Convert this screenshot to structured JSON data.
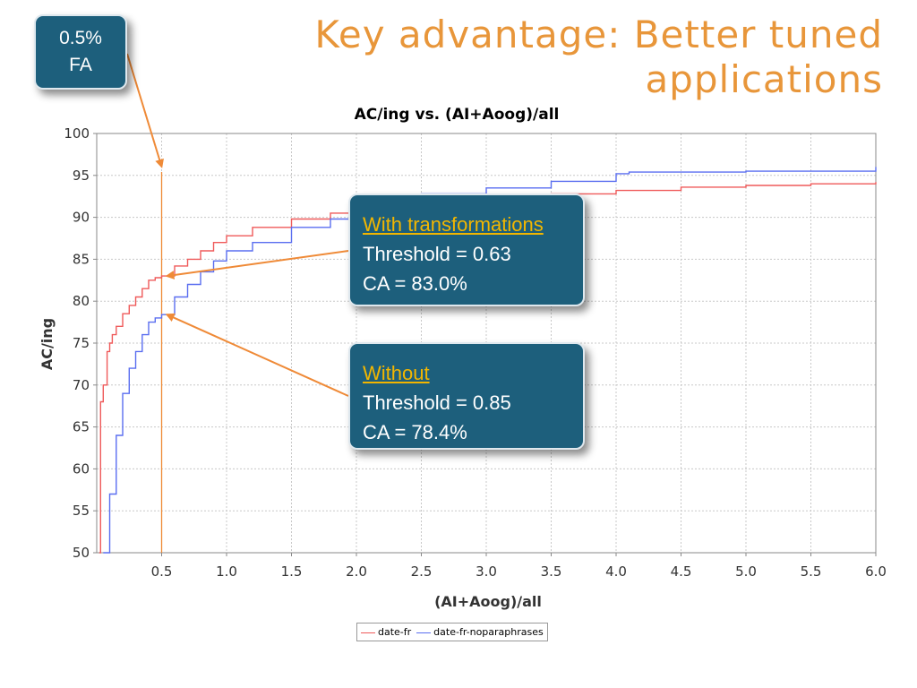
{
  "slide": {
    "title_line1": "Key advantage: Better tuned",
    "title_line2": "applications",
    "title_color": "#e8963a"
  },
  "callouts": {
    "fa": {
      "line1": "0.5%",
      "line2": "FA"
    },
    "with": {
      "header": "With transformations",
      "threshold": "Threshold = 0.63",
      "ca": "CA = 83.0%"
    },
    "without": {
      "header": "Without",
      "threshold": "Threshold = 0.85",
      "ca": "CA = 78.4%"
    },
    "box_color": "#1d5f7c",
    "header_color": "#f2b600",
    "arrow_color": "#ef8a37"
  },
  "chart_data": {
    "type": "line",
    "title": "AC/ing vs. (AI+Aoog)/all",
    "xlabel": "(AI+Aoog)/all",
    "ylabel": "AC/ing",
    "xlim": [
      0,
      6.0
    ],
    "ylim": [
      50,
      100
    ],
    "xticks": [
      "0.5",
      "1.0",
      "1.5",
      "2.0",
      "2.5",
      "3.0",
      "3.5",
      "4.0",
      "4.5",
      "5.0",
      "5.5",
      "6.0"
    ],
    "yticks": [
      "50",
      "55",
      "60",
      "65",
      "70",
      "75",
      "80",
      "85",
      "90",
      "95",
      "100"
    ],
    "grid": true,
    "marker_line_x": 0.5,
    "series": [
      {
        "name": "date-fr",
        "color": "#ef5a5a",
        "x": [
          0.02,
          0.03,
          0.05,
          0.08,
          0.1,
          0.12,
          0.15,
          0.2,
          0.25,
          0.3,
          0.35,
          0.4,
          0.45,
          0.5,
          0.6,
          0.7,
          0.8,
          0.9,
          1.0,
          1.2,
          1.5,
          1.8,
          2.0,
          2.5,
          3.0,
          3.5,
          4.0,
          4.5,
          5.0,
          5.5,
          6.0
        ],
        "y": [
          50,
          68,
          70,
          74,
          75,
          76,
          77,
          78.5,
          79.5,
          80.5,
          81.5,
          82.5,
          82.8,
          83.0,
          84.2,
          85.0,
          86.0,
          87.0,
          87.8,
          88.8,
          89.8,
          90.5,
          91.0,
          91.8,
          92.4,
          92.8,
          93.2,
          93.6,
          93.8,
          94.0,
          94.2
        ]
      },
      {
        "name": "date-fr-noparaphrases",
        "color": "#5a6ef0",
        "x": [
          0.05,
          0.1,
          0.15,
          0.2,
          0.25,
          0.3,
          0.35,
          0.4,
          0.45,
          0.5,
          0.6,
          0.7,
          0.8,
          0.9,
          1.0,
          1.2,
          1.5,
          1.8,
          2.0,
          2.2,
          2.5,
          3.0,
          3.5,
          4.0,
          4.1,
          5.0,
          6.0
        ],
        "y": [
          50,
          57,
          64,
          69,
          72,
          74,
          76,
          77.5,
          78.0,
          78.4,
          80.5,
          82.0,
          83.5,
          84.8,
          86.0,
          87.0,
          88.8,
          89.8,
          90.5,
          91.5,
          92.8,
          93.5,
          94.3,
          95.2,
          95.4,
          95.5,
          96.0
        ]
      }
    ]
  }
}
